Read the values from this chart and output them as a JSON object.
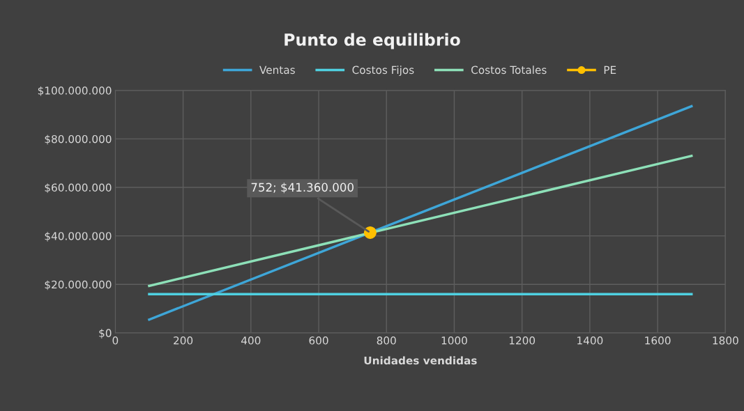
{
  "chart_data": {
    "type": "line",
    "title": "Punto de equilibrio",
    "xlabel": "Unidades vendidas",
    "series": [
      {
        "name": "Ventas",
        "color": "#3ea6d8",
        "x": [
          100,
          1700
        ],
        "values": [
          5500000,
          93500000
        ],
        "marker": "none"
      },
      {
        "name": "Costos Fijos",
        "color": "#4fd0e0",
        "x": [
          100,
          1700
        ],
        "values": [
          16000000,
          16000000
        ],
        "marker": "none"
      },
      {
        "name": "Costos Totales",
        "color": "#8de0b8",
        "x": [
          100,
          1700
        ],
        "values": [
          19400000,
          73000000
        ],
        "marker": "none"
      },
      {
        "name": "PE",
        "color": "#ffc000",
        "x": [
          752
        ],
        "values": [
          41360000
        ],
        "marker": "circle"
      }
    ],
    "annotations": [
      {
        "text": "752; $41.360.000",
        "x": 752,
        "y": 41360000
      }
    ],
    "xlim": [
      0,
      1800
    ],
    "xticks": [
      0,
      200,
      400,
      600,
      800,
      1000,
      1200,
      1400,
      1600,
      1800
    ],
    "ylim": [
      0,
      100000000
    ],
    "yticks": [
      {
        "value": 0,
        "label": "$0"
      },
      {
        "value": 20000000,
        "label": "$20.000.000"
      },
      {
        "value": 40000000,
        "label": "$40.000.000"
      },
      {
        "value": 60000000,
        "label": "$60.000.000"
      },
      {
        "value": 80000000,
        "label": "$80.000.000"
      },
      {
        "value": 100000000,
        "label": "$100.000.000"
      }
    ],
    "grid": true,
    "legend": "top",
    "line_style": "solid"
  }
}
